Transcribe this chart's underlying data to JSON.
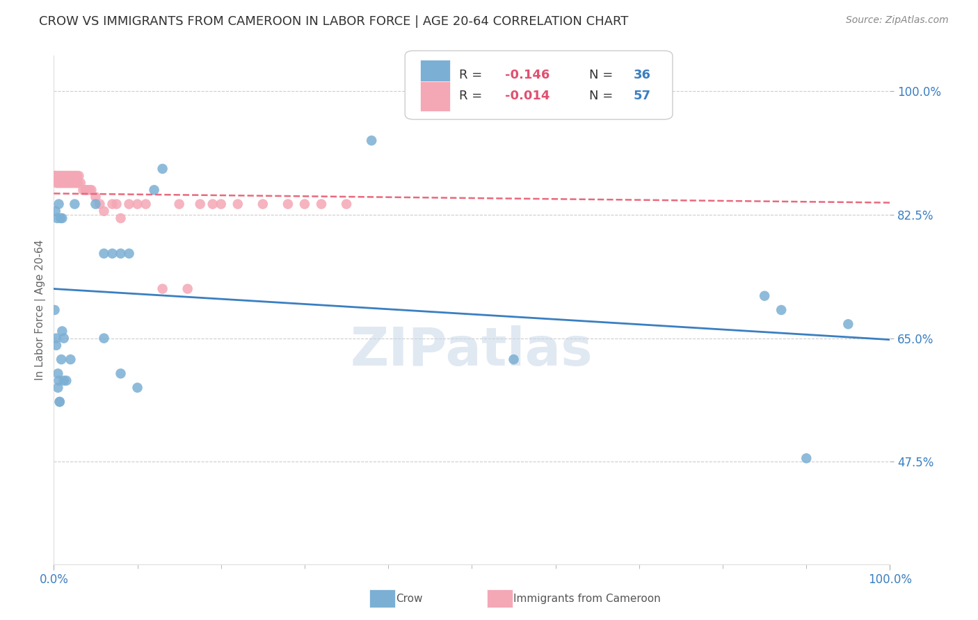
{
  "title": "CROW VS IMMIGRANTS FROM CAMEROON IN LABOR FORCE | AGE 20-64 CORRELATION CHART",
  "source": "Source: ZipAtlas.com",
  "ylabel": "In Labor Force | Age 20-64",
  "xlim": [
    0.0,
    1.0
  ],
  "ylim": [
    0.33,
    1.05
  ],
  "x_tick_labels": [
    "0.0%",
    "100.0%"
  ],
  "y_tick_labels": [
    "47.5%",
    "65.0%",
    "82.5%",
    "100.0%"
  ],
  "y_tick_values": [
    0.475,
    0.65,
    0.825,
    1.0
  ],
  "watermark": "ZIPatlas",
  "crow_color": "#7bafd4",
  "cameroon_color": "#f4a7b5",
  "crow_line_color": "#3a7fc1",
  "cameroon_line_color": "#e8697d",
  "crow_x": [
    0.001,
    0.002,
    0.003,
    0.004,
    0.005,
    0.006,
    0.007,
    0.008,
    0.01,
    0.012,
    0.015,
    0.02,
    0.025,
    0.05,
    0.06,
    0.08,
    0.09,
    0.12,
    0.13,
    0.38,
    0.55,
    0.85,
    0.87,
    0.9,
    0.95,
    0.005,
    0.003,
    0.006,
    0.007,
    0.009,
    0.01,
    0.012,
    0.06,
    0.07,
    0.08,
    0.1
  ],
  "crow_y": [
    0.69,
    0.83,
    0.65,
    0.82,
    0.6,
    0.84,
    0.56,
    0.82,
    0.82,
    0.65,
    0.59,
    0.62,
    0.84,
    0.84,
    0.65,
    0.77,
    0.77,
    0.86,
    0.89,
    0.93,
    0.62,
    0.71,
    0.69,
    0.48,
    0.67,
    0.58,
    0.64,
    0.59,
    0.56,
    0.62,
    0.66,
    0.59,
    0.77,
    0.77,
    0.6,
    0.58
  ],
  "cameroon_x": [
    0.001,
    0.002,
    0.003,
    0.004,
    0.005,
    0.006,
    0.007,
    0.008,
    0.009,
    0.01,
    0.011,
    0.012,
    0.013,
    0.014,
    0.015,
    0.016,
    0.017,
    0.018,
    0.019,
    0.02,
    0.021,
    0.022,
    0.023,
    0.024,
    0.025,
    0.026,
    0.027,
    0.028,
    0.029,
    0.03,
    0.032,
    0.035,
    0.038,
    0.04,
    0.043,
    0.045,
    0.05,
    0.055,
    0.06,
    0.07,
    0.075,
    0.08,
    0.09,
    0.1,
    0.11,
    0.13,
    0.15,
    0.16,
    0.175,
    0.19,
    0.2,
    0.22,
    0.25,
    0.28,
    0.3,
    0.32,
    0.35
  ],
  "cameroon_y": [
    0.88,
    0.88,
    0.87,
    0.88,
    0.87,
    0.88,
    0.87,
    0.88,
    0.87,
    0.88,
    0.87,
    0.88,
    0.87,
    0.88,
    0.87,
    0.88,
    0.87,
    0.88,
    0.87,
    0.88,
    0.87,
    0.88,
    0.87,
    0.88,
    0.87,
    0.88,
    0.87,
    0.88,
    0.87,
    0.88,
    0.87,
    0.86,
    0.86,
    0.86,
    0.86,
    0.86,
    0.85,
    0.84,
    0.83,
    0.84,
    0.84,
    0.82,
    0.84,
    0.84,
    0.84,
    0.72,
    0.84,
    0.72,
    0.84,
    0.84,
    0.84,
    0.84,
    0.84,
    0.84,
    0.84,
    0.84,
    0.84
  ],
  "crow_trend_x": [
    0.0,
    1.0
  ],
  "crow_trend_y": [
    0.72,
    0.648
  ],
  "cameroon_trend_x": [
    0.0,
    1.0
  ],
  "cameroon_trend_y": [
    0.855,
    0.842
  ],
  "background_color": "#ffffff",
  "grid_color": "#cccccc",
  "title_fontsize": 13,
  "tick_label_color_x": "#3a7fc1",
  "tick_label_color_y": "#3a7fc1",
  "r_color": "#e05070",
  "n_color": "#3a7fc1"
}
